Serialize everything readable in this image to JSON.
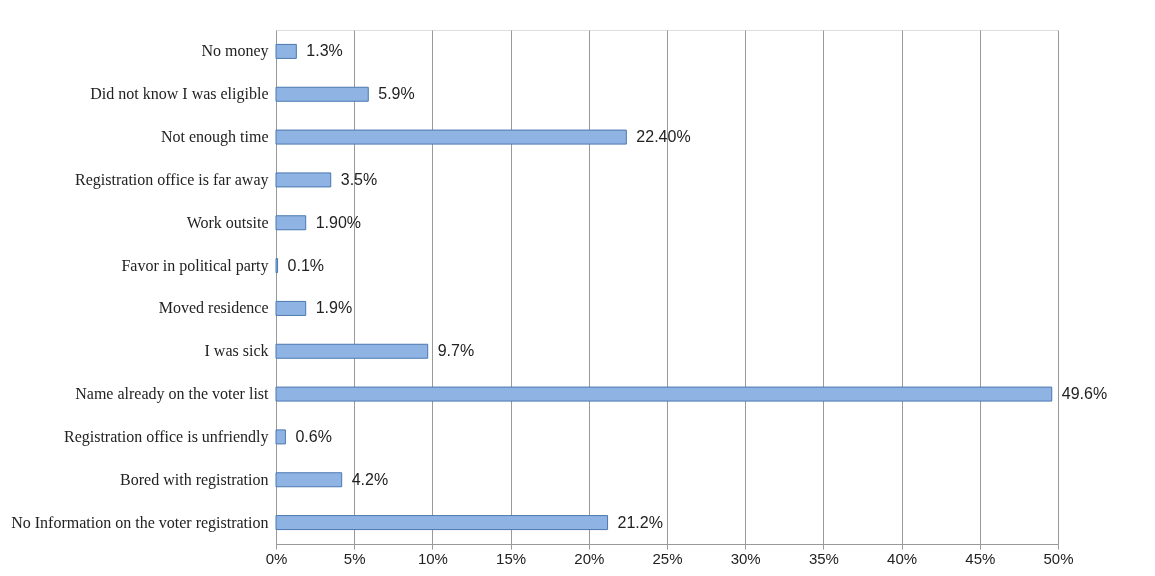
{
  "chart_data": {
    "type": "bar",
    "orientation": "horizontal",
    "categories": [
      "No money",
      "Did not know I was eligible",
      "Not enough time",
      "Registration office is far away",
      "Work outsite",
      "Favor in political party",
      "Moved residence",
      "I was sick",
      "Name already on the voter list",
      "Registration office is unfriendly",
      "Bored with registration",
      "No Information on the voter registration"
    ],
    "values": [
      1.3,
      5.9,
      22.4,
      3.5,
      1.9,
      0.1,
      1.9,
      9.7,
      49.6,
      0.6,
      4.2,
      21.2
    ],
    "value_labels": [
      "1.3%",
      "5.9%",
      "22.40%",
      "3.5%",
      "1.90%",
      "0.1%",
      "1.9%",
      "9.7%",
      "49.6%",
      "0.6%",
      "4.2%",
      "21.2%"
    ],
    "color": "#8fb4e3",
    "xlim": [
      0,
      50
    ],
    "xticks": [
      {
        "value": 0,
        "label": "0%"
      },
      {
        "value": 5,
        "label": "5%"
      },
      {
        "value": 10,
        "label": "10%"
      },
      {
        "value": 15,
        "label": "15%"
      },
      {
        "value": 20,
        "label": "20%"
      },
      {
        "value": 25,
        "label": "25%"
      },
      {
        "value": 30,
        "label": "30%"
      },
      {
        "value": 35,
        "label": "35%"
      },
      {
        "value": 40,
        "label": "40%"
      },
      {
        "value": 45,
        "label": "45%"
      },
      {
        "value": 50,
        "label": "50%"
      }
    ],
    "grid": "x"
  }
}
